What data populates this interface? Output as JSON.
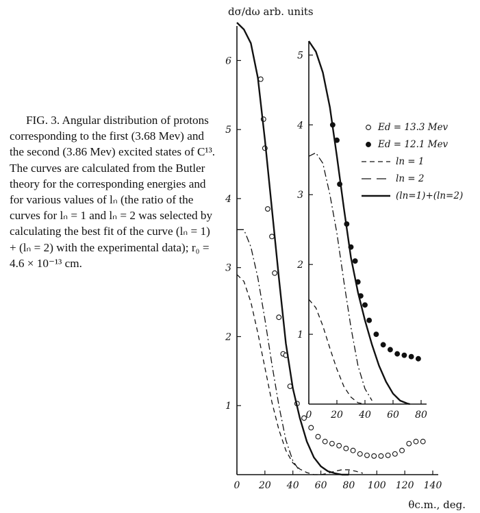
{
  "caption": {
    "text": "FIG. 3. Angular distribution of protons corresponding to the first (3.68 Mev) and the second (3.86 Mev) excited states of C¹³. The curves are calculated from the Butler theory for the corresponding energies and for various values of lₙ (the ratio of the curves for lₙ = 1 and lₙ = 2 was selected by calculating the best fit of the curve (lₙ = 1) + (lₙ = 2) with the experimental data); r₀ = 4.6 × 10⁻¹³ cm."
  },
  "chart_data": [
    {
      "type": "line",
      "panel": "main",
      "title": "",
      "ylabel": "dσ/dω arb. units",
      "xlabel": "θc.m., deg.",
      "xlim": [
        0,
        140
      ],
      "ylim": [
        0,
        6.5
      ],
      "x_ticks": [
        0,
        20,
        40,
        60,
        80,
        100,
        120,
        140
      ],
      "y_ticks": [
        1,
        2,
        3,
        4,
        5,
        6
      ],
      "series": [
        {
          "name": "Ed = 13.3 Mev",
          "style": "open-circle",
          "x": [
            17,
            19,
            20,
            22,
            25,
            27,
            30,
            33,
            35,
            38,
            43,
            48,
            53,
            58,
            63,
            68,
            73,
            78,
            83,
            88,
            93,
            98,
            103,
            108,
            113,
            118,
            123,
            128,
            133
          ],
          "y": [
            5.73,
            5.15,
            4.73,
            3.85,
            3.45,
            2.92,
            2.28,
            1.75,
            1.73,
            1.28,
            1.03,
            0.82,
            0.68,
            0.55,
            0.48,
            0.45,
            0.42,
            0.38,
            0.35,
            0.3,
            0.28,
            0.27,
            0.27,
            0.28,
            0.3,
            0.35,
            0.45,
            0.48,
            0.48
          ]
        },
        {
          "name": "(ln=1)+(ln=2)",
          "style": "solid",
          "x": [
            0,
            5,
            10,
            15,
            20,
            25,
            30,
            35,
            40,
            45,
            50,
            55,
            60,
            65,
            70,
            75,
            80
          ],
          "y": [
            6.55,
            6.45,
            6.25,
            5.75,
            4.85,
            3.85,
            2.85,
            1.9,
            1.25,
            0.82,
            0.48,
            0.25,
            0.12,
            0.05,
            0.02,
            0.0,
            0.0
          ]
        },
        {
          "name": "ln=2",
          "style": "dash-dot",
          "x": [
            0,
            5,
            10,
            15,
            20,
            25,
            30,
            35,
            40,
            45
          ],
          "y": [
            3.55,
            3.55,
            3.3,
            2.85,
            2.25,
            1.6,
            1.0,
            0.5,
            0.2,
            0.05
          ]
        },
        {
          "name": "ln=1",
          "style": "dashed",
          "x": [
            0,
            5,
            10,
            15,
            20,
            25,
            30,
            35,
            40,
            45,
            50,
            55,
            60,
            65,
            70,
            75,
            80,
            85,
            90
          ],
          "y": [
            2.9,
            2.8,
            2.5,
            2.05,
            1.55,
            1.05,
            0.65,
            0.35,
            0.17,
            0.08,
            0.03,
            0.0,
            0.0,
            0.02,
            0.05,
            0.07,
            0.07,
            0.05,
            0.02
          ]
        }
      ]
    },
    {
      "type": "line",
      "panel": "inset",
      "title": "",
      "xlim": [
        0,
        80
      ],
      "ylim": [
        0,
        5.2
      ],
      "x_ticks": [
        0,
        20,
        40,
        60,
        80
      ],
      "y_ticks": [
        1,
        2,
        3,
        4,
        5
      ],
      "legend": {
        "position": "top-right",
        "items": [
          {
            "symbol": "open-circle",
            "label": "Ed = 13.3 Mev"
          },
          {
            "symbol": "filled-circle",
            "label": "Ed = 12.1 Mev"
          },
          {
            "symbol": "dashed",
            "label": "ln = 1"
          },
          {
            "symbol": "long-dash",
            "label": "ln = 2"
          },
          {
            "symbol": "solid",
            "label": "(ln=1)+(ln=2)"
          }
        ]
      },
      "series": [
        {
          "name": "Ed = 12.1 Mev",
          "style": "filled-circle",
          "x": [
            17,
            20,
            22,
            27,
            30,
            33,
            35,
            37,
            40,
            43,
            48,
            53,
            58,
            63,
            68,
            73,
            78
          ],
          "y": [
            4.0,
            3.78,
            3.15,
            2.58,
            2.25,
            2.05,
            1.75,
            1.55,
            1.42,
            1.2,
            1.0,
            0.85,
            0.78,
            0.72,
            0.7,
            0.68,
            0.65
          ]
        },
        {
          "name": "(ln=1)+(ln=2)",
          "style": "solid",
          "x": [
            0,
            5,
            10,
            15,
            20,
            25,
            30,
            35,
            40,
            45,
            50,
            55,
            60,
            65,
            70,
            72
          ],
          "y": [
            5.2,
            5.05,
            4.75,
            4.25,
            3.55,
            2.8,
            2.1,
            1.6,
            1.2,
            0.85,
            0.55,
            0.32,
            0.15,
            0.05,
            0.01,
            0.0
          ]
        },
        {
          "name": "ln=2",
          "style": "dash-dot",
          "x": [
            0,
            5,
            10,
            15,
            20,
            25,
            30,
            35,
            40,
            45
          ],
          "y": [
            3.55,
            3.6,
            3.45,
            3.0,
            2.45,
            1.75,
            1.1,
            0.55,
            0.22,
            0.05
          ]
        },
        {
          "name": "ln=1",
          "style": "dashed",
          "x": [
            0,
            5,
            10,
            15,
            20,
            25,
            30,
            35,
            40
          ],
          "y": [
            1.5,
            1.38,
            1.12,
            0.8,
            0.5,
            0.25,
            0.1,
            0.02,
            0.0
          ]
        }
      ]
    }
  ]
}
